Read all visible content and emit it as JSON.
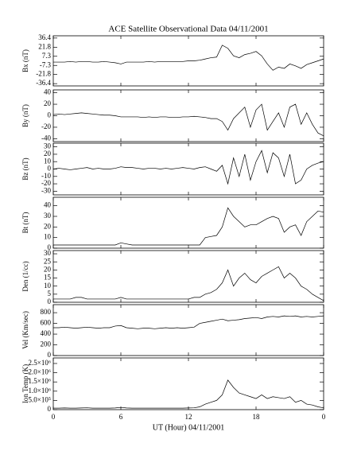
{
  "chart_data": [
    {
      "type": "line",
      "title": "ACE Satellite Observational Data  04/11/2001",
      "ylabel": "Bx (nT)",
      "ylim": [
        -40,
        40
      ],
      "yticks": [
        -36.4,
        -21.8,
        -7.3,
        7.3,
        21.8,
        36.4
      ],
      "x": [
        0,
        0.5,
        1,
        1.5,
        2,
        2.5,
        3,
        3.5,
        4,
        4.5,
        5,
        5.5,
        6,
        6.5,
        7,
        7.5,
        8,
        8.5,
        9,
        9.5,
        10,
        10.5,
        11,
        11.5,
        12,
        12.5,
        13,
        13.5,
        14,
        14.5,
        15,
        15.5,
        16,
        16.5,
        17,
        17.5,
        18,
        18.5,
        19,
        19.5,
        20,
        20.5,
        21,
        21.5,
        22,
        22.5,
        23,
        23.5,
        24
      ],
      "series": [
        {
          "color": "#000000",
          "values": [
            -2,
            -2,
            -2,
            -1,
            -2,
            -1,
            -1,
            -2,
            -2,
            -1,
            -2,
            -3,
            -5,
            -2,
            -2,
            -2,
            -2,
            -1,
            -2,
            -1,
            -1,
            -1,
            -1,
            -1,
            0,
            0,
            1,
            3,
            5,
            6,
            25,
            20,
            8,
            5,
            10,
            12,
            15,
            8,
            -5,
            -15,
            -10,
            -12,
            -5,
            -8,
            -12,
            -6,
            -3,
            0,
            3
          ]
        }
      ]
    },
    {
      "type": "line",
      "ylabel": "By (nT)",
      "ylim": [
        -45,
        45
      ],
      "yticks": [
        -40,
        -20,
        0,
        20,
        40
      ],
      "x": [
        0,
        0.5,
        1,
        1.5,
        2,
        2.5,
        3,
        3.5,
        4,
        4.5,
        5,
        5.5,
        6,
        6.5,
        7,
        7.5,
        8,
        8.5,
        9,
        9.5,
        10,
        10.5,
        11,
        11.5,
        12,
        12.5,
        13,
        13.5,
        14,
        14.5,
        15,
        15.5,
        16,
        16.5,
        17,
        17.5,
        18,
        18.5,
        19,
        19.5,
        20,
        20.5,
        21,
        21.5,
        22,
        22.5,
        23,
        23.5,
        24
      ],
      "series": [
        {
          "color": "#000000",
          "values": [
            2,
            3,
            2,
            3,
            4,
            5,
            4,
            3,
            2,
            1,
            1,
            0,
            -2,
            -2,
            -2,
            -2,
            -3,
            -2,
            -3,
            -2,
            -2,
            -3,
            -3,
            -2,
            -2,
            -1,
            -2,
            -3,
            -5,
            -5,
            -10,
            -25,
            -5,
            5,
            15,
            -20,
            10,
            20,
            -25,
            -10,
            5,
            -20,
            15,
            20,
            -15,
            5,
            -15,
            -30,
            -35
          ]
        }
      ]
    },
    {
      "type": "line",
      "ylabel": "Bz (nT)",
      "ylim": [
        -35,
        35
      ],
      "yticks": [
        -30,
        -20,
        -10,
        0,
        10,
        20,
        30
      ],
      "x": [
        0,
        0.5,
        1,
        1.5,
        2,
        2.5,
        3,
        3.5,
        4,
        4.5,
        5,
        5.5,
        6,
        6.5,
        7,
        7.5,
        8,
        8.5,
        9,
        9.5,
        10,
        10.5,
        11,
        11.5,
        12,
        12.5,
        13,
        13.5,
        14,
        14.5,
        15,
        15.5,
        16,
        16.5,
        17,
        17.5,
        18,
        18.5,
        19,
        19.5,
        20,
        20.5,
        21,
        21.5,
        22,
        22.5,
        23,
        23.5,
        24
      ],
      "series": [
        {
          "color": "#000000",
          "values": [
            0,
            1,
            0,
            -1,
            0,
            1,
            2,
            0,
            1,
            0,
            0,
            1,
            3,
            2,
            2,
            1,
            0,
            1,
            1,
            0,
            1,
            0,
            1,
            2,
            1,
            0,
            2,
            3,
            0,
            -3,
            5,
            -20,
            15,
            -10,
            20,
            -15,
            10,
            25,
            -5,
            22,
            15,
            -10,
            20,
            -20,
            -15,
            0,
            5,
            8,
            10
          ]
        }
      ]
    },
    {
      "type": "line",
      "ylabel": "Bt (nT)",
      "ylim": [
        0,
        48
      ],
      "yticks": [
        0,
        10,
        20,
        30,
        40
      ],
      "x": [
        0,
        0.5,
        1,
        1.5,
        2,
        2.5,
        3,
        3.5,
        4,
        4.5,
        5,
        5.5,
        6,
        6.5,
        7,
        7.5,
        8,
        8.5,
        9,
        9.5,
        10,
        10.5,
        11,
        11.5,
        12,
        12.5,
        13,
        13.5,
        14,
        14.5,
        15,
        15.5,
        16,
        16.5,
        17,
        17.5,
        18,
        18.5,
        19,
        19.5,
        20,
        20.5,
        21,
        21.5,
        22,
        22.5,
        23,
        23.5,
        24
      ],
      "series": [
        {
          "color": "#000000",
          "values": [
            3,
            3,
            3,
            3,
            3,
            3,
            3,
            3,
            3,
            3,
            3,
            3,
            5,
            4,
            3,
            3,
            3,
            3,
            3,
            3,
            3,
            3,
            3,
            3,
            3,
            3,
            3,
            10,
            11,
            12,
            20,
            38,
            30,
            25,
            20,
            22,
            22,
            25,
            28,
            30,
            28,
            15,
            20,
            22,
            12,
            25,
            30,
            35,
            34
          ]
        }
      ]
    },
    {
      "type": "line",
      "ylabel": "Den (1/cc)",
      "ylim": [
        0,
        32
      ],
      "yticks": [
        0,
        5,
        10,
        15,
        20,
        25,
        30
      ],
      "x": [
        0,
        0.5,
        1,
        1.5,
        2,
        2.5,
        3,
        3.5,
        4,
        4.5,
        5,
        5.5,
        6,
        6.5,
        7,
        7.5,
        8,
        8.5,
        9,
        9.5,
        10,
        10.5,
        11,
        11.5,
        12,
        12.5,
        13,
        13.5,
        14,
        14.5,
        15,
        15.5,
        16,
        16.5,
        17,
        17.5,
        18,
        18.5,
        19,
        19.5,
        20,
        20.5,
        21,
        21.5,
        22,
        22.5,
        23,
        23.5,
        24
      ],
      "series": [
        {
          "color": "#000000",
          "values": [
            2,
            2,
            2,
            2,
            3,
            3,
            2,
            2,
            2,
            2,
            2,
            2,
            3,
            2,
            2,
            2,
            2,
            2,
            2,
            2,
            2,
            2,
            2,
            2,
            2,
            3,
            3,
            5,
            6,
            8,
            12,
            20,
            10,
            15,
            18,
            14,
            12,
            16,
            18,
            20,
            22,
            15,
            18,
            15,
            10,
            8,
            5,
            3,
            1
          ]
        }
      ]
    },
    {
      "type": "line",
      "ylabel": "Vel (Km/sec)",
      "ylim": [
        0,
        950
      ],
      "yticks": [
        0,
        200,
        400,
        600,
        800
      ],
      "x": [
        0,
        0.5,
        1,
        1.5,
        2,
        2.5,
        3,
        3.5,
        4,
        4.5,
        5,
        5.5,
        6,
        6.5,
        7,
        7.5,
        8,
        8.5,
        9,
        9.5,
        10,
        10.5,
        11,
        11.5,
        12,
        12.5,
        13,
        13.5,
        14,
        14.5,
        15,
        15.5,
        16,
        16.5,
        17,
        17.5,
        18,
        18.5,
        19,
        19.5,
        20,
        20.5,
        21,
        21.5,
        22,
        22.5,
        23,
        23.5,
        24
      ],
      "series": [
        {
          "color": "#000000",
          "values": [
            520,
            520,
            530,
            520,
            510,
            520,
            530,
            520,
            510,
            520,
            520,
            550,
            560,
            520,
            510,
            500,
            510,
            510,
            500,
            510,
            520,
            510,
            520,
            510,
            520,
            530,
            600,
            620,
            640,
            660,
            680,
            650,
            660,
            670,
            690,
            700,
            710,
            690,
            720,
            730,
            720,
            740,
            730,
            740,
            720,
            730,
            720,
            730,
            740
          ]
        }
      ]
    },
    {
      "type": "line",
      "ylabel": "Ion Temp (K)",
      "xlabel": "UT (Hour)  04/11/2001",
      "ylim": [
        0,
        2800000
      ],
      "yticks": [
        0,
        {
          "value": 500000,
          "label": "5.0×10⁵"
        },
        {
          "value": 1000000,
          "label": "1.0×10⁶"
        },
        {
          "value": 1500000,
          "label": "1.5×10⁶"
        },
        {
          "value": 2000000,
          "label": "2.0×10⁶"
        },
        {
          "value": 2500000,
          "label": "2.5×10⁶"
        }
      ],
      "xlim": [
        0,
        24
      ],
      "xticks": [
        0,
        6,
        12,
        18,
        {
          "value": 24,
          "label": "0"
        }
      ],
      "x": [
        0,
        0.5,
        1,
        1.5,
        2,
        2.5,
        3,
        3.5,
        4,
        4.5,
        5,
        5.5,
        6,
        6.5,
        7,
        7.5,
        8,
        8.5,
        9,
        9.5,
        10,
        10.5,
        11,
        11.5,
        12,
        12.5,
        13,
        13.5,
        14,
        14.5,
        15,
        15.5,
        16,
        16.5,
        17,
        17.5,
        18,
        18.5,
        19,
        19.5,
        20,
        20.5,
        21,
        21.5,
        22,
        22.5,
        23,
        23.5,
        24
      ],
      "series": [
        {
          "color": "#000000",
          "values": [
            80000,
            80000,
            90000,
            80000,
            80000,
            90000,
            100000,
            80000,
            80000,
            80000,
            80000,
            90000,
            120000,
            90000,
            80000,
            80000,
            80000,
            80000,
            80000,
            80000,
            80000,
            80000,
            80000,
            80000,
            90000,
            100000,
            150000,
            300000,
            400000,
            500000,
            800000,
            1600000,
            1200000,
            900000,
            800000,
            700000,
            600000,
            800000,
            600000,
            700000,
            650000,
            600000,
            700000,
            400000,
            500000,
            300000,
            250000,
            150000,
            100000
          ]
        }
      ]
    }
  ]
}
